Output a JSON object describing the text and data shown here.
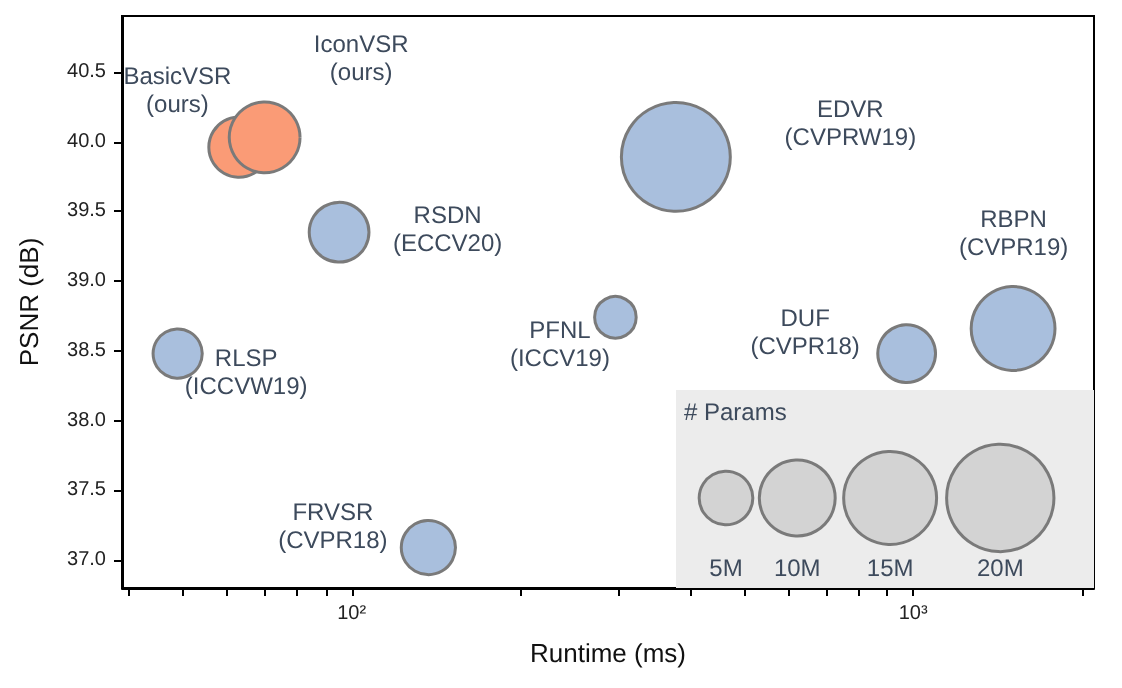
{
  "chart_data": {
    "type": "bubble",
    "xlabel": "Runtime (ms)",
    "ylabel": "PSNR (dB)",
    "legend_title": "# Params",
    "log": "x",
    "xlim": [
      39,
      2100
    ],
    "ylim": [
      36.8,
      40.9
    ],
    "xticks": [
      {
        "value": 40,
        "label": null
      },
      {
        "value": 50,
        "label": null
      },
      {
        "value": 60,
        "label": null
      },
      {
        "value": 70,
        "label": null
      },
      {
        "value": 80,
        "label": null
      },
      {
        "value": 90,
        "label": null
      },
      {
        "value": 100,
        "label": "10²"
      },
      {
        "value": 200,
        "label": null
      },
      {
        "value": 300,
        "label": null
      },
      {
        "value": 400,
        "label": null
      },
      {
        "value": 500,
        "label": null
      },
      {
        "value": 600,
        "label": null
      },
      {
        "value": 700,
        "label": null
      },
      {
        "value": 800,
        "label": null
      },
      {
        "value": 900,
        "label": null
      },
      {
        "value": 1000,
        "label": "10³"
      },
      {
        "value": 2000,
        "label": null
      }
    ],
    "yticks": [
      {
        "value": 37,
        "label": "37.0"
      },
      37.5,
      {
        "value": 38,
        "label": "38.0"
      },
      38.5,
      {
        "value": 39,
        "label": "39.0"
      },
      39.5,
      {
        "value": 40,
        "label": "40.0"
      },
      40.5
    ],
    "size_legend": [
      {
        "value": 5,
        "label": "5M"
      },
      {
        "value": 10,
        "label": "10M"
      },
      {
        "value": 15,
        "label": "15M"
      },
      {
        "value": 20,
        "label": "20M"
      }
    ],
    "grid": false,
    "series": [
      {
        "name": "BasicVSR\n(ours)",
        "color": "#fa9b76",
        "x": [
          63
        ],
        "values": [
          39.96
        ],
        "sizes": [
          6.3
        ]
      },
      {
        "name": "IconVSR\n(ours)",
        "color": "#fa9b76",
        "x": [
          70
        ],
        "values": [
          40.03
        ],
        "sizes": [
          8.7
        ]
      },
      {
        "name": "RSDN\n(ECCV20)",
        "color": "#a9bfdd",
        "x": [
          95
        ],
        "values": [
          39.35
        ],
        "sizes": [
          6.2
        ]
      },
      {
        "name": "RLSP\n(ICCVW19)",
        "color": "#a9bfdd",
        "x": [
          49
        ],
        "values": [
          38.48
        ],
        "sizes": [
          4.2
        ]
      },
      {
        "name": "FRVSR\n(CVPR18)",
        "color": "#a9bfdd",
        "x": [
          137
        ],
        "values": [
          37.09
        ],
        "sizes": [
          5.1
        ]
      },
      {
        "name": "PFNL\n(ICCV19)",
        "color": "#a9bfdd",
        "x": [
          295
        ],
        "values": [
          38.74
        ],
        "sizes": [
          3.0
        ]
      },
      {
        "name": "EDVR\n(CVPRW19)",
        "color": "#a9bfdd",
        "x": [
          378
        ],
        "values": [
          39.89
        ],
        "sizes": [
          20.6
        ]
      },
      {
        "name": "DUF\n(CVPR18)",
        "color": "#a9bfdd",
        "x": [
          974
        ],
        "values": [
          38.48
        ],
        "sizes": [
          5.8
        ]
      },
      {
        "name": "RBPN\n(CVPR19)",
        "color": "#a9bfdd",
        "x": [
          1507
        ],
        "values": [
          38.66
        ],
        "sizes": [
          12.2
        ]
      }
    ]
  }
}
